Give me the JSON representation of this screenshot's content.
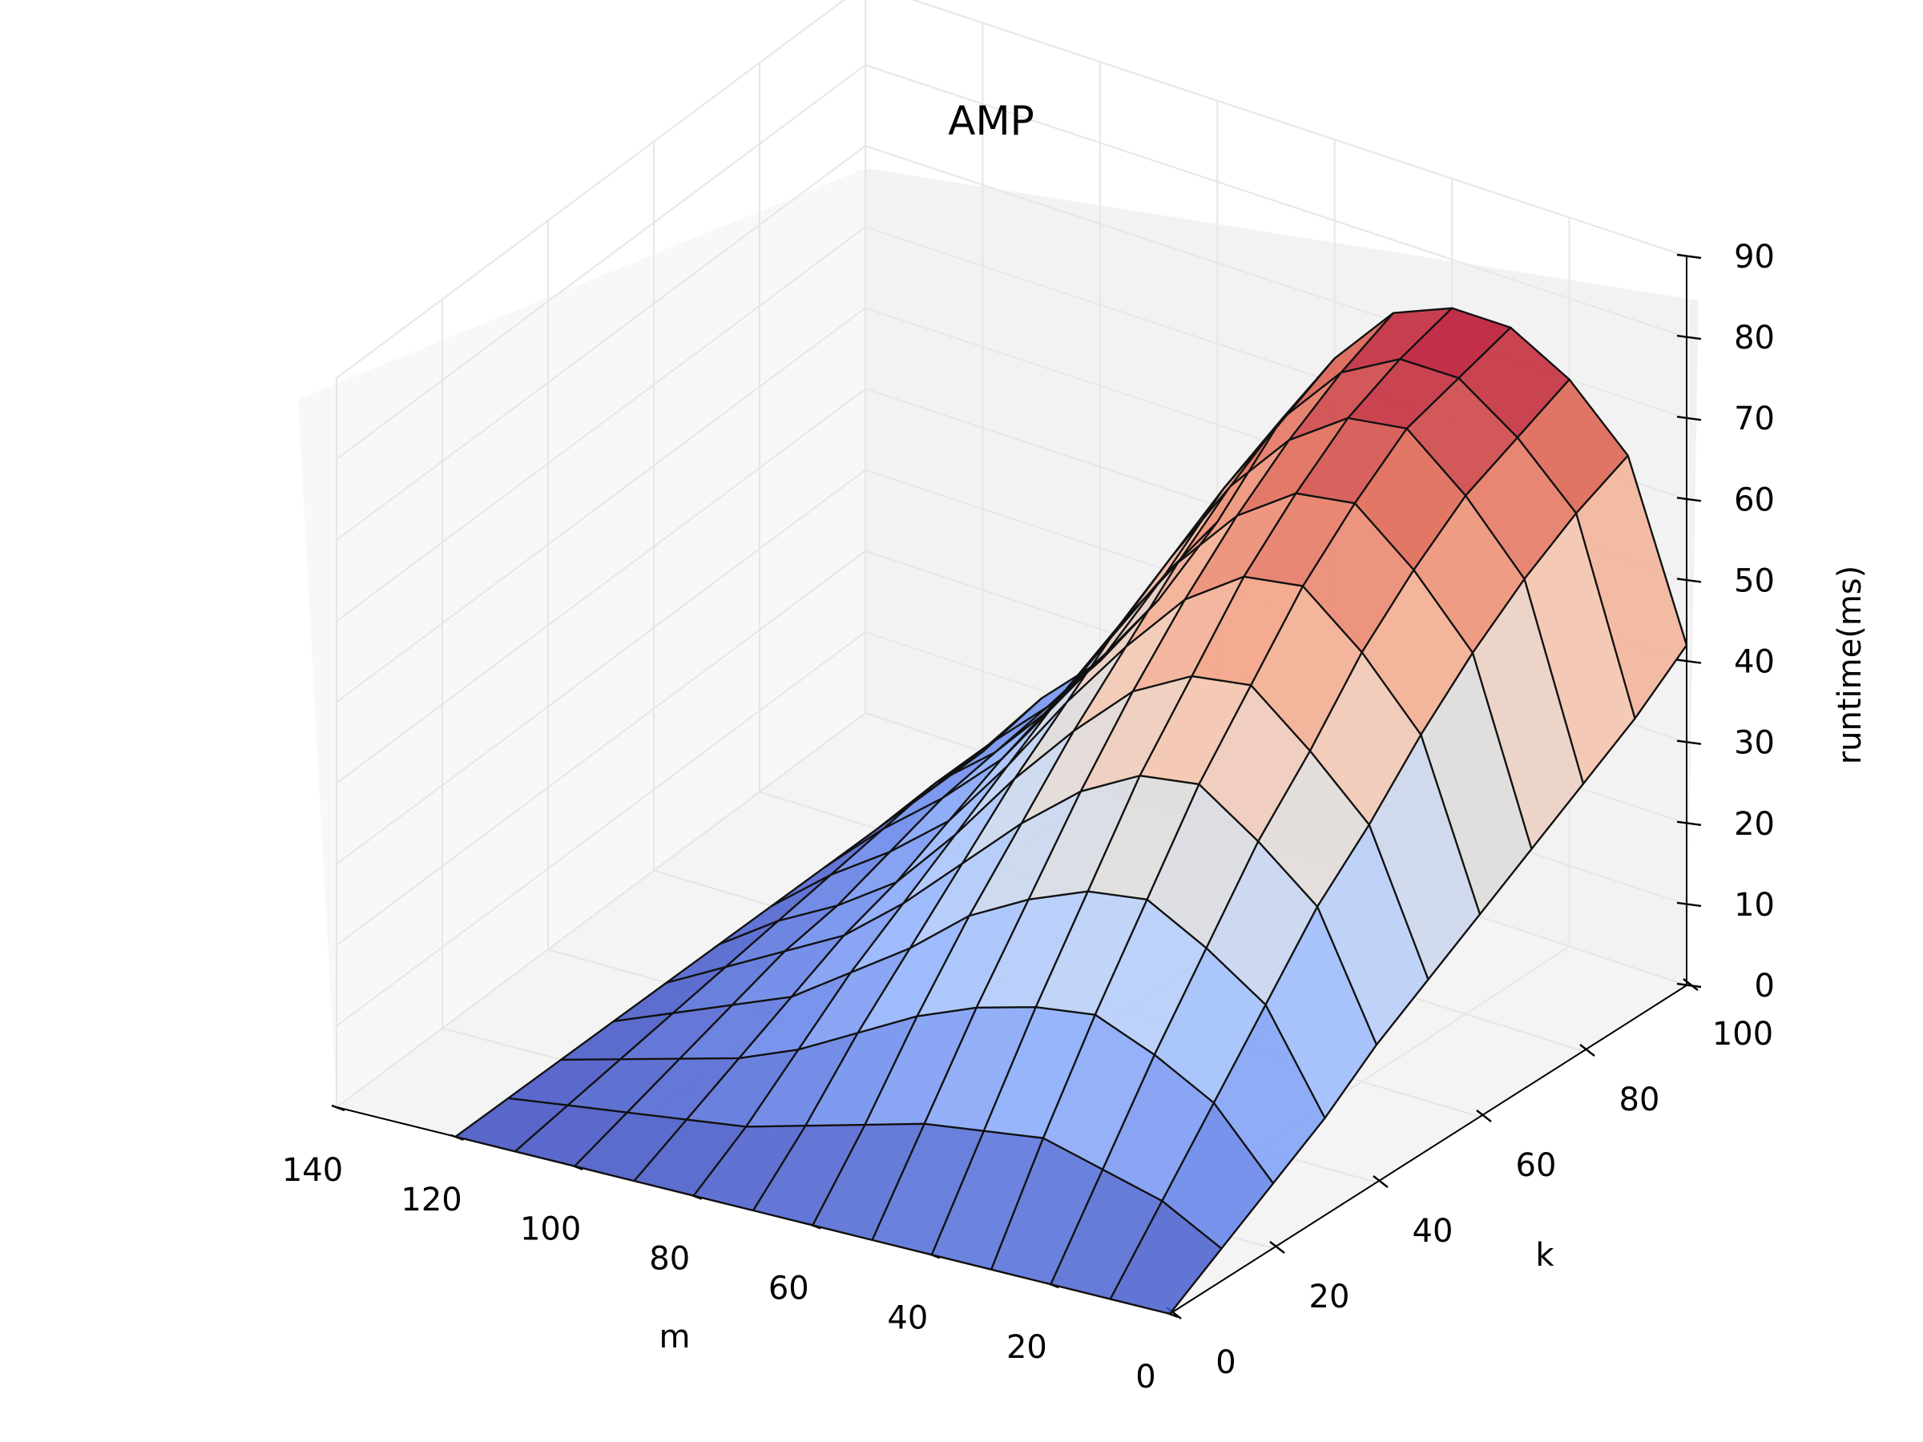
{
  "chart_data": {
    "type": "surface",
    "title": "AMP",
    "xlabel": "m",
    "ylabel": "k",
    "zlabel": "runtime(ms)",
    "xlim": [
      0,
      140
    ],
    "ylim": [
      0,
      100
    ],
    "zlim": [
      0,
      90
    ],
    "xticks": [
      "0",
      "20",
      "40",
      "60",
      "80",
      "100",
      "120",
      "140"
    ],
    "yticks": [
      "0",
      "20",
      "40",
      "60",
      "80",
      "100"
    ],
    "zticks": [
      "0",
      "10",
      "20",
      "30",
      "40",
      "50",
      "60",
      "70",
      "80",
      "90"
    ],
    "colormap": "coolwarm",
    "grid": true,
    "m": [
      0,
      10,
      20,
      30,
      40,
      50,
      60,
      70,
      80,
      90,
      100,
      110,
      120
    ],
    "k": [
      0,
      10,
      20,
      30,
      40,
      50,
      60,
      70,
      80,
      90,
      100
    ],
    "runtime_ms": [
      [
        0,
        0,
        0,
        0,
        0,
        0,
        0,
        0,
        0,
        0,
        0,
        0,
        0
      ],
      [
        4,
        8,
        10,
        12,
        11,
        10,
        8,
        6,
        4,
        3,
        2,
        1,
        0
      ],
      [
        8,
        16,
        20,
        23,
        22,
        20,
        17,
        13,
        9,
        6,
        4,
        2,
        0
      ],
      [
        12,
        24,
        29,
        33,
        32,
        29,
        25,
        19,
        14,
        9,
        6,
        3,
        0
      ],
      [
        17,
        32,
        38,
        43,
        42,
        38,
        32,
        25,
        18,
        12,
        8,
        4,
        0
      ],
      [
        21,
        38,
        45,
        51,
        50,
        46,
        39,
        31,
        22,
        14,
        9,
        5,
        0
      ],
      [
        25,
        45,
        53,
        59,
        58,
        53,
        45,
        36,
        26,
        17,
        11,
        6,
        0
      ],
      [
        29,
        51,
        59,
        65,
        64,
        59,
        51,
        41,
        30,
        20,
        13,
        7,
        0
      ],
      [
        33,
        56,
        64,
        70,
        69,
        64,
        56,
        45,
        33,
        22,
        14,
        8,
        0
      ],
      [
        37,
        60,
        67,
        72,
        72,
        68,
        60,
        49,
        36,
        24,
        15,
        8,
        0
      ],
      [
        42,
        63,
        70,
        74,
        74,
        71,
        63,
        52,
        38,
        26,
        16,
        9,
        0
      ]
    ]
  }
}
